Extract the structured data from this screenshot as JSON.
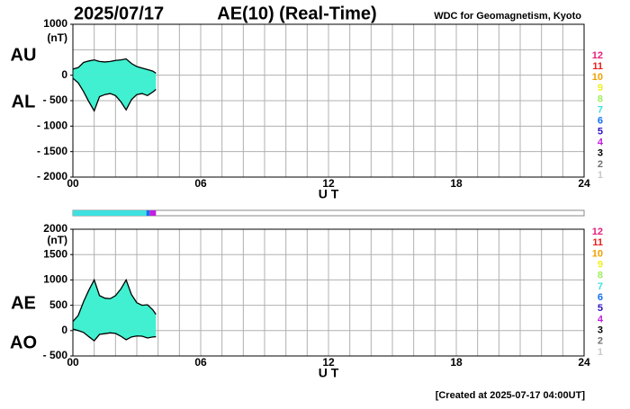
{
  "header": {
    "date": "2025/07/17",
    "title": "AE(10) (Real-Time)",
    "source": "WDC for Geomagnetism, Kyoto"
  },
  "chart_data": [
    {
      "type": "line",
      "ylabel": "(nT)",
      "xlabel": "U T",
      "x": [
        0,
        0.25,
        0.5,
        0.75,
        1,
        1.25,
        1.5,
        1.75,
        2,
        2.25,
        2.5,
        2.75,
        3,
        3.25,
        3.5,
        3.75,
        3.9
      ],
      "series": [
        {
          "name": "AU",
          "color": "#000000",
          "values": [
            120,
            150,
            250,
            280,
            300,
            270,
            260,
            270,
            290,
            300,
            320,
            230,
            170,
            140,
            110,
            80,
            40
          ]
        },
        {
          "name": "AL",
          "color": "#000000",
          "values": [
            -60,
            -150,
            -320,
            -520,
            -700,
            -420,
            -380,
            -360,
            -400,
            -520,
            -680,
            -480,
            -380,
            -360,
            -400,
            -330,
            -280
          ]
        }
      ],
      "fill": "#40f0d0",
      "xlim": [
        0,
        24
      ],
      "xticks": [
        {
          "value": 0,
          "label": "00"
        },
        {
          "value": 6,
          "label": "06"
        },
        12,
        18,
        24
      ],
      "ylim": [
        -2000,
        1000
      ],
      "yticks": [
        1000,
        0,
        {
          "value": -500,
          "label": "- 500"
        },
        {
          "value": -1000,
          "label": "- 1000"
        },
        {
          "value": -1500,
          "label": "- 1500"
        },
        {
          "value": -2000,
          "label": "- 2000"
        }
      ],
      "grid_step": {
        "x": 1,
        "y": 500
      }
    },
    {
      "type": "line",
      "xlabel": "U T",
      "ylabel": "(nT)",
      "x": [
        0,
        0.25,
        0.5,
        0.75,
        1,
        1.25,
        1.5,
        1.75,
        2,
        2.25,
        2.5,
        2.75,
        3,
        3.25,
        3.5,
        3.75,
        3.9
      ],
      "series": [
        {
          "name": "AE",
          "color": "#000000",
          "values": [
            180,
            300,
            570,
            800,
            1000,
            690,
            640,
            630,
            690,
            820,
            1000,
            710,
            550,
            500,
            510,
            410,
            320
          ]
        },
        {
          "name": "AO",
          "color": "#000000",
          "values": [
            30,
            0,
            -35,
            -120,
            -200,
            -75,
            -60,
            -45,
            -55,
            -110,
            -180,
            -125,
            -105,
            -110,
            -145,
            -125,
            -120
          ]
        }
      ],
      "fill": "#40f0d0",
      "xlim": [
        0,
        24
      ],
      "xticks": [
        {
          "value": 0,
          "label": "00"
        },
        {
          "value": 6,
          "label": "06"
        },
        12,
        18,
        24
      ],
      "ylim": [
        -500,
        2000
      ],
      "yticks": [
        2000,
        1500,
        1000,
        500,
        0,
        {
          "value": -500,
          "label": "- 500"
        }
      ],
      "grid_step": {
        "x": 1,
        "y": 500
      }
    }
  ],
  "station_legend": {
    "counts": [
      12,
      11,
      10,
      9,
      8,
      7,
      6,
      5,
      4,
      3,
      2,
      1
    ],
    "colors": [
      "#e8207a",
      "#e8201c",
      "#f0a000",
      "#f0f020",
      "#a0f060",
      "#40e0e0",
      "#1070f0",
      "#3010c0",
      "#c020e0",
      "#000000",
      "#707070",
      "#c8c8c8"
    ]
  },
  "coverage": [
    {
      "start": 0,
      "end": 3.45,
      "stations": 7
    },
    {
      "start": 3.45,
      "end": 3.6,
      "stations": 6
    },
    {
      "start": 3.6,
      "end": 3.9,
      "stations": 4
    }
  ],
  "footer": "[Created at 2025-07-17 04:00UT]"
}
